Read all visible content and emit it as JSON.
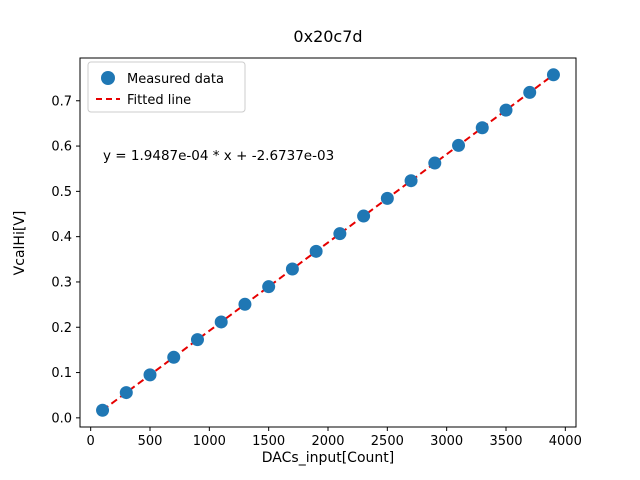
{
  "figure": {
    "title": "0x20c7d",
    "annotation": "y = 1.9487e-04 * x + -2.6737e-03"
  },
  "legend": {
    "position": "upper left",
    "measured_label": "Measured data",
    "fitted_label": "Fitted line"
  },
  "chart_data": {
    "type": "scatter",
    "title": "0x20c7d",
    "xlabel": "DACs_input[Count]",
    "ylabel": "VcalHi[V]",
    "series": [
      {
        "name": "Measured data",
        "style": "scatter",
        "x": [
          100,
          300,
          500,
          700,
          900,
          1100,
          1300,
          1500,
          1700,
          1900,
          2100,
          2300,
          2500,
          2700,
          2900,
          3100,
          3300,
          3500,
          3700,
          3900
        ],
        "y": [
          0.0168,
          0.0558,
          0.0948,
          0.1337,
          0.1727,
          0.2117,
          0.2507,
          0.2896,
          0.3286,
          0.3676,
          0.4066,
          0.4455,
          0.4845,
          0.5235,
          0.5625,
          0.6014,
          0.6404,
          0.6794,
          0.7184,
          0.7573
        ]
      }
    ],
    "fit": {
      "name": "Fitted line",
      "style": "dashed",
      "slope": 0.00019487,
      "intercept": -0.0026737,
      "equation": "y = 1.9487e-04 * x + -2.6737e-03",
      "x_range": [
        100,
        3900
      ]
    },
    "xlim": [
      -90,
      4090
    ],
    "ylim": [
      -0.0202,
      0.7944
    ],
    "xticks": [
      0,
      500,
      1000,
      1500,
      2000,
      2500,
      3000,
      3500,
      4000
    ],
    "yticks": [
      0.0,
      0.1,
      0.2,
      0.3,
      0.4,
      0.5,
      0.6,
      0.7
    ],
    "grid": false,
    "legend_position": "upper left",
    "colors": {
      "marker": "#1f77b4",
      "fit_line": "#e60000",
      "spine": "#000000",
      "legend_border": "#cccccc"
    }
  }
}
